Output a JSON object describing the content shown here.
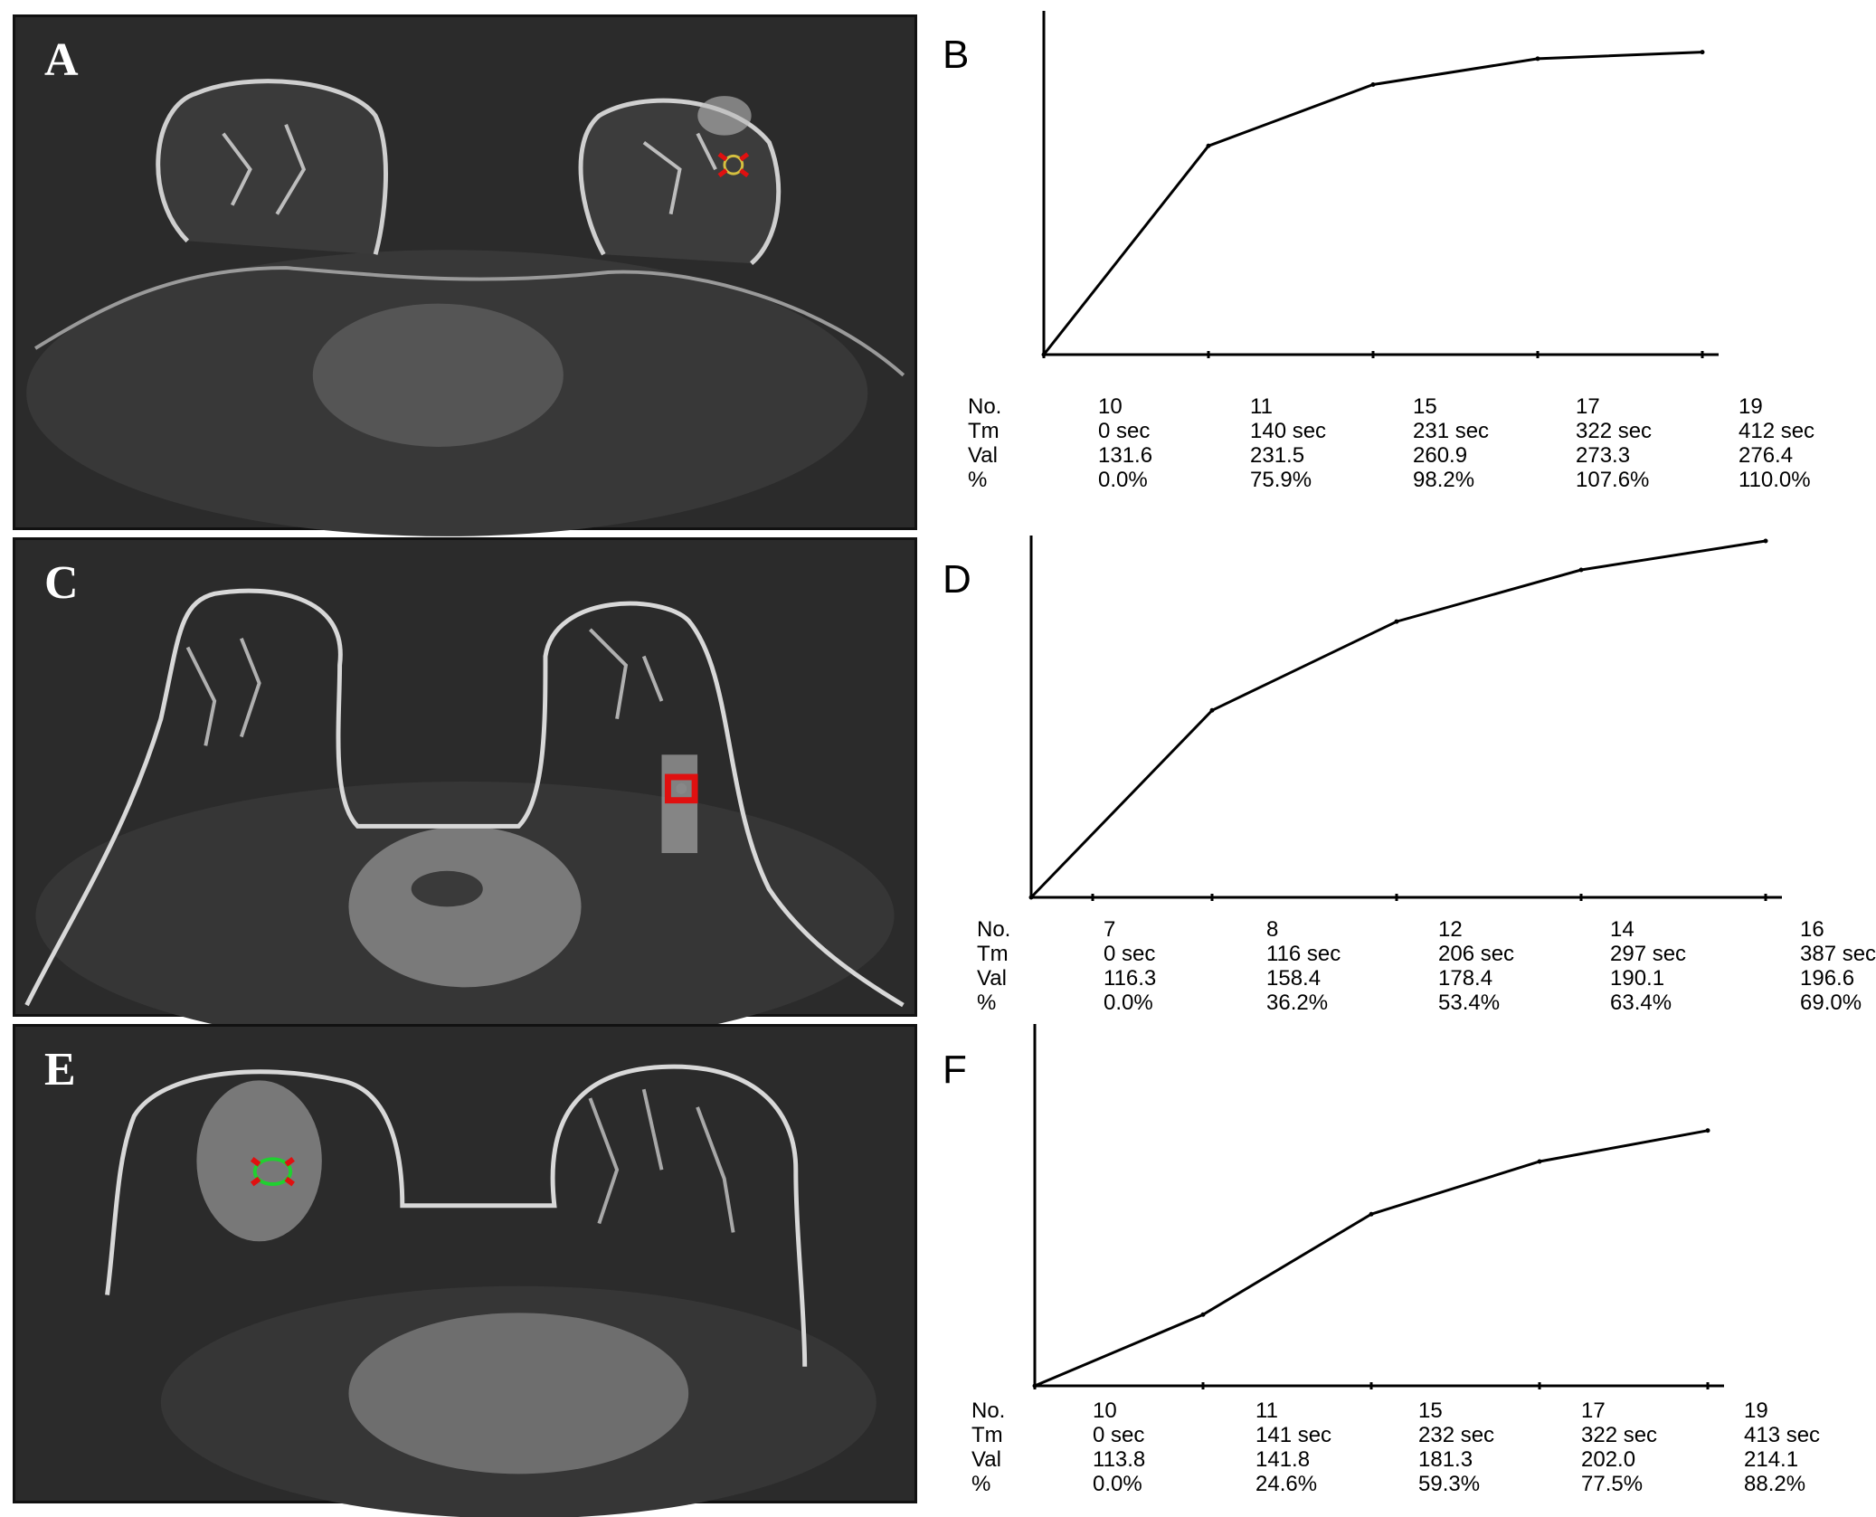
{
  "panels": {
    "a": {
      "label": "A"
    },
    "c": {
      "label": "C"
    },
    "e": {
      "label": "E"
    }
  },
  "row_labels": [
    "No.",
    "Tm",
    "Val",
    "%"
  ],
  "chart_data": [
    {
      "type": "line",
      "panel": "B",
      "xlabel": "",
      "ylabel": "",
      "no": [
        "10",
        "11",
        "15",
        "17",
        "19"
      ],
      "tm": [
        "0 sec",
        "140 sec",
        "231 sec",
        "322 sec",
        "412 sec"
      ],
      "val": [
        "131.6",
        "231.5",
        "260.9",
        "273.3",
        "276.4"
      ],
      "pct": [
        "0.0%",
        "75.9%",
        "98.2%",
        "107.6%",
        "110.0%"
      ],
      "x": [
        0,
        140,
        231,
        322,
        412
      ],
      "y": [
        0.0,
        75.9,
        98.2,
        107.6,
        110.0
      ],
      "grid": false
    },
    {
      "type": "line",
      "panel": "D",
      "xlabel": "",
      "ylabel": "",
      "no": [
        "7",
        "8",
        "12",
        "14",
        "16"
      ],
      "tm": [
        "0 sec",
        "116 sec",
        "206 sec",
        "297 sec",
        "387 sec"
      ],
      "val": [
        "116.3",
        "158.4",
        "178.4",
        "190.1",
        "196.6"
      ],
      "pct": [
        "0.0%",
        "36.2%",
        "53.4%",
        "63.4%",
        "69.0%"
      ],
      "x": [
        0,
        116,
        206,
        297,
        387
      ],
      "y": [
        0.0,
        36.2,
        53.4,
        63.4,
        69.0
      ],
      "grid": false
    },
    {
      "type": "line",
      "panel": "F",
      "xlabel": "",
      "ylabel": "",
      "no": [
        "10",
        "11",
        "15",
        "17",
        "19"
      ],
      "tm": [
        "0 sec",
        "141 sec",
        "232 sec",
        "322 sec",
        "413 sec"
      ],
      "val": [
        "113.8",
        "141.8",
        "181.3",
        "202.0",
        "214.1"
      ],
      "pct": [
        "0.0%",
        "24.6%",
        "59.3%",
        "77.5%",
        "88.2%"
      ],
      "x": [
        0,
        141,
        232,
        322,
        413
      ],
      "y": [
        0.0,
        24.6,
        59.3,
        77.5,
        88.2
      ],
      "grid": false
    }
  ]
}
